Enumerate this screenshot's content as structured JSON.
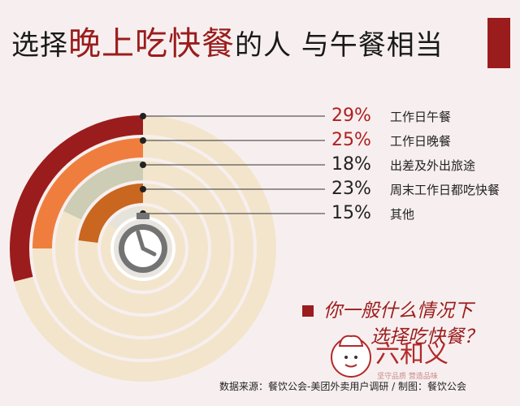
{
  "title": {
    "part1": "选择",
    "highlight": "晚上吃快餐",
    "part2": "的人  与午餐相当"
  },
  "colors": {
    "accent": "#9b1c1c",
    "pct_highlight": "#b01f1f",
    "pct_normal": "#222222"
  },
  "chart_data": {
    "type": "pie",
    "categories": [
      "工作日午餐",
      "工作日晚餐",
      "出差及外出旅途",
      "周末工作日都吃快餐",
      "其他"
    ],
    "values": [
      29,
      25,
      18,
      23,
      15
    ],
    "labels": [
      "29%",
      "25%",
      "18%",
      "23%",
      "15%"
    ],
    "colors": [
      "#9b1c1c",
      "#ef7e3e",
      "#cdccb4",
      "#c9661f",
      "#e6e3da"
    ],
    "track_color": "#f3e5cc",
    "highlighted": [
      true,
      true,
      false,
      false,
      false
    ],
    "legend_position": "right"
  },
  "question": {
    "line1": "你一般什么情况下",
    "line2": "选择吃快餐？"
  },
  "logo": {
    "text": "六和义",
    "slogan": "坚守品质  营造品味"
  },
  "footer": "数据来源：餐饮公会-美团外卖用户调研 / 制图：餐饮公会"
}
